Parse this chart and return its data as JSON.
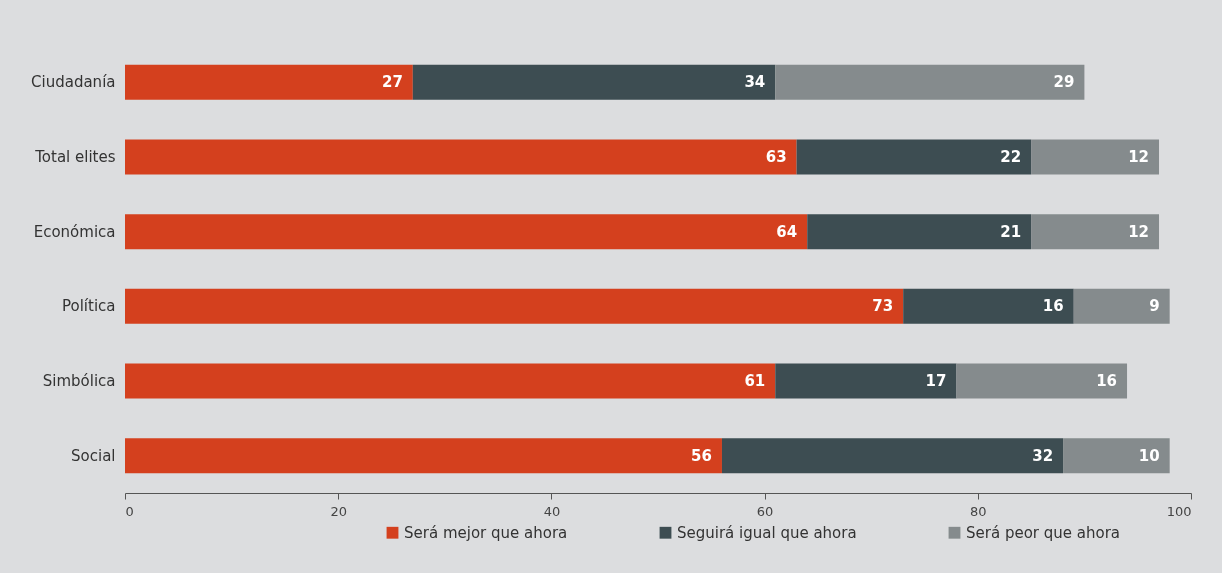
{
  "chart_data": {
    "type": "bar",
    "orientation": "horizontal",
    "stacked": true,
    "data_labels": true,
    "legend": "bottom",
    "categories": [
      "Ciudadanía",
      "Total elites",
      "Económica",
      "Política",
      "Simbólica",
      "Social"
    ],
    "xlim": [
      0,
      100
    ],
    "xticks": [
      0,
      20,
      40,
      60,
      80,
      100
    ],
    "series": [
      {
        "name": "Será mejor que ahora",
        "color": "#d4401e",
        "values": [
          27,
          63,
          64,
          73,
          61,
          56
        ]
      },
      {
        "name": "Seguirá igual que ahora",
        "color": "#3d4d52",
        "values": [
          34,
          22,
          21,
          16,
          17,
          32
        ]
      },
      {
        "name": "Será peor que ahora",
        "color": "#858b8d",
        "values": [
          29,
          12,
          12,
          9,
          16,
          10
        ]
      }
    ]
  }
}
